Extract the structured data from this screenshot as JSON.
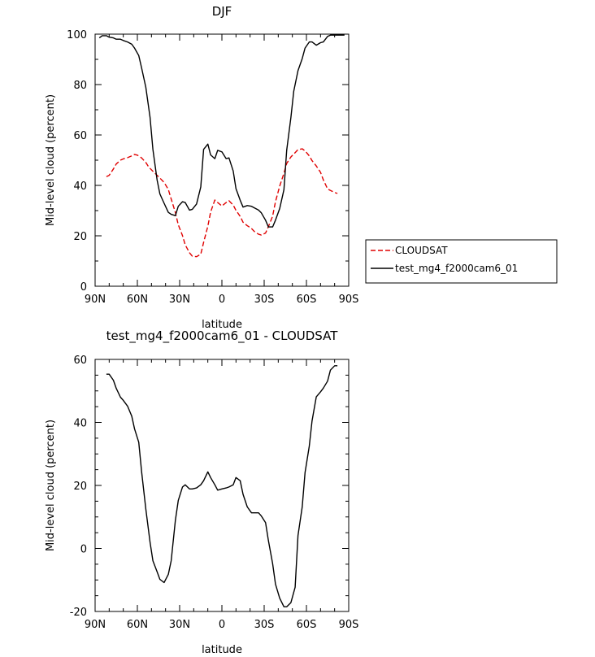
{
  "chart_data": [
    {
      "type": "line",
      "title": "DJF",
      "xlabel": "latitude",
      "ylabel": "Mid-level cloud (percent)",
      "xlim": [
        90,
        -90
      ],
      "ylim": [
        0,
        100
      ],
      "xticks": [
        90,
        60,
        30,
        0,
        -30,
        -60,
        -90
      ],
      "xtick_labels": [
        "90N",
        "60N",
        "30N",
        "0",
        "30S",
        "60S",
        "90S"
      ],
      "yticks": [
        0,
        20,
        40,
        60,
        80,
        100
      ],
      "ytick_labels": [
        "0",
        "20",
        "40",
        "60",
        "80",
        "100"
      ],
      "legend_position": "right",
      "series": [
        {
          "name": "CLOUDSAT",
          "color": "#e00000",
          "dash": "dashed",
          "x": [
            82,
            80,
            77,
            75,
            72,
            70,
            67,
            64,
            62,
            60,
            57,
            54,
            52,
            49,
            46,
            44,
            41,
            38,
            36,
            33,
            31,
            28,
            26,
            23,
            21,
            18,
            15,
            13,
            10,
            8,
            5,
            3,
            0,
            -3,
            -5,
            -8,
            -10,
            -13,
            -15,
            -18,
            -21,
            -23,
            -26,
            -28,
            -31,
            -33,
            -36,
            -38,
            -41,
            -44,
            -46,
            -49,
            -52,
            -54,
            -57,
            -59,
            -62,
            -64,
            -67,
            -70,
            -72,
            -75,
            -77,
            -80,
            -82
          ],
          "y": [
            43.5,
            44,
            46.5,
            48.5,
            50,
            50.5,
            51,
            51.7,
            52.3,
            52,
            50.9,
            49.1,
            47.3,
            45.6,
            44,
            42.9,
            41.2,
            38.4,
            34.6,
            29.2,
            24.4,
            20.1,
            16.4,
            13.3,
            11.9,
            11.7,
            12.7,
            17.4,
            23.8,
            29.4,
            34.2,
            33.2,
            31.8,
            33.2,
            33.9,
            32.2,
            30.1,
            27.7,
            25.4,
            24,
            22.9,
            21.7,
            20.6,
            20.3,
            21.1,
            23.6,
            27.8,
            33.5,
            39.7,
            44.8,
            48.7,
            51.3,
            53,
            54.2,
            54.5,
            53.7,
            51.7,
            49.8,
            47.7,
            45.2,
            42.2,
            38.6,
            38,
            37.2,
            36.8
          ]
        },
        {
          "name": "test_mg4_f2000cam6_01",
          "color": "#000000",
          "dash": "solid",
          "x": [
            87,
            85,
            82,
            80,
            77,
            75,
            72,
            70,
            67,
            64,
            62,
            59,
            57,
            54,
            51,
            49,
            46,
            44,
            41,
            38,
            36,
            33,
            31,
            28,
            26,
            23,
            21,
            18,
            15,
            13,
            10,
            8,
            5,
            3,
            0,
            -3,
            -5,
            -8,
            -10,
            -13,
            -15,
            -18,
            -21,
            -23,
            -26,
            -28,
            -31,
            -33,
            -36,
            -38,
            -41,
            -44,
            -46,
            -49,
            -51,
            -54,
            -57,
            -59,
            -62,
            -64,
            -67,
            -70,
            -72,
            -75,
            -77,
            -80,
            -82,
            -85,
            -87
          ],
          "y": [
            98.5,
            99.4,
            99.4,
            98.8,
            98.5,
            98,
            98,
            97.5,
            96.9,
            96,
            94.5,
            91.5,
            86.6,
            78.9,
            67,
            54.3,
            42.1,
            36.6,
            32.9,
            29.3,
            28.5,
            28,
            31.7,
            33.5,
            33.2,
            30.2,
            30.5,
            32.6,
            39.4,
            54.3,
            56.4,
            52.1,
            50.6,
            53.9,
            53.3,
            50.6,
            50.9,
            45.7,
            38.7,
            34.1,
            31.4,
            32,
            31.7,
            31.1,
            30.2,
            29.1,
            26.2,
            23.5,
            23.5,
            26.2,
            30.8,
            38.3,
            53.9,
            67,
            77.4,
            85.5,
            90.3,
            94.5,
            96.9,
            96.9,
            95.6,
            96.6,
            96.9,
            99.1,
            99.6,
            99.6,
            99.6,
            99.6,
            99.6
          ]
        }
      ]
    },
    {
      "type": "line",
      "title": "test_mg4_f2000cam6_01 - CLOUDSAT",
      "xlabel": "latitude",
      "ylabel": "Mid-level cloud (percent)",
      "xlim": [
        90,
        -90
      ],
      "ylim": [
        -20,
        60
      ],
      "xticks": [
        90,
        60,
        30,
        0,
        -30,
        -60,
        -90
      ],
      "xtick_labels": [
        "90N",
        "60N",
        "30N",
        "0",
        "30S",
        "60S",
        "90S"
      ],
      "yticks": [
        -20,
        0,
        20,
        40,
        60
      ],
      "ytick_labels": [
        "-20",
        "0",
        "20",
        "40",
        "60"
      ],
      "series": [
        {
          "name": "",
          "color": "#000000",
          "dash": "solid",
          "x": [
            82,
            80,
            77,
            75,
            72,
            70,
            67,
            64,
            62,
            59,
            57,
            54,
            51,
            49,
            46,
            44,
            41,
            38,
            36,
            33,
            31,
            28,
            26,
            23,
            21,
            18,
            15,
            13,
            10,
            8,
            5,
            3,
            0,
            -3,
            -5,
            -8,
            -10,
            -13,
            -15,
            -18,
            -21,
            -23,
            -26,
            -28,
            -31,
            -33,
            -36,
            -38,
            -41,
            -44,
            -46,
            -49,
            -52,
            -54,
            -57,
            -59,
            -62,
            -64,
            -67,
            -70,
            -72,
            -75,
            -77,
            -80,
            -82
          ],
          "y": [
            55.3,
            55.3,
            53.4,
            50.8,
            48,
            47,
            45.2,
            42,
            38,
            33.7,
            24.4,
            12.5,
            2,
            -3.9,
            -7.4,
            -9.8,
            -10.8,
            -8.2,
            -3.9,
            9,
            15.2,
            19.5,
            20.2,
            18.9,
            18.9,
            19.2,
            20.2,
            21.5,
            24.3,
            22.5,
            20.2,
            18.5,
            18.9,
            19.2,
            19.5,
            20.2,
            22.5,
            21.5,
            17.2,
            13.2,
            11.3,
            11.3,
            11.3,
            10.3,
            8.2,
            2.5,
            -4.8,
            -11.3,
            -15.8,
            -18.5,
            -18.5,
            -17.2,
            -12.3,
            4.1,
            13.2,
            24.1,
            32.5,
            40.5,
            48.1,
            49.7,
            50.9,
            53.1,
            56.6,
            58,
            58
          ]
        }
      ]
    }
  ]
}
